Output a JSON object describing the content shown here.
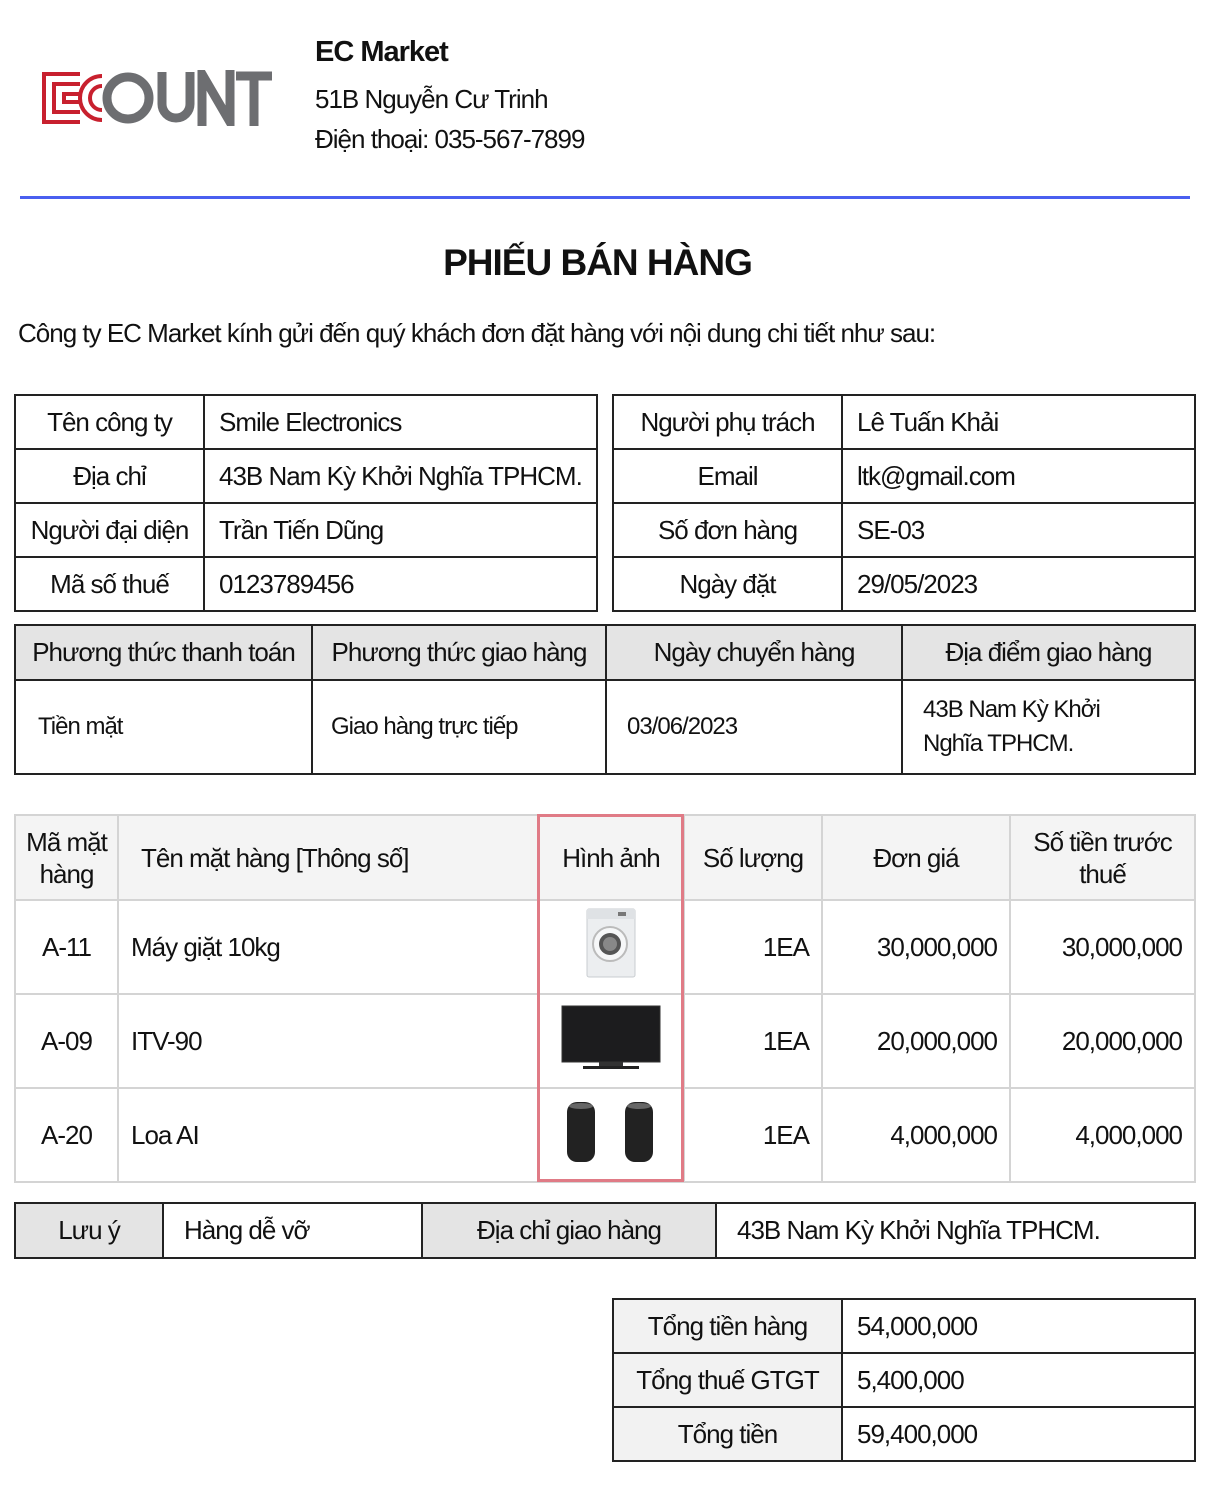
{
  "header": {
    "logo_text": "ECOUNT",
    "company": "EC Market",
    "address": "51B Nguyễn Cư Trinh",
    "phone": "Điện thoại: 035-567-7899",
    "accent": "#4a5ff0"
  },
  "title": "PHIẾU BÁN HÀNG",
  "intro": "Công ty EC Market kính gửi đến quý khách đơn đặt hàng với nội dung chi tiết như sau:",
  "customer": [
    [
      "Tên công ty",
      "Smile Electronics"
    ],
    [
      "Địa chỉ",
      "43B Nam Kỳ Khởi Nghĩa TPHCM."
    ],
    [
      "Người đại diện",
      "Trần Tiến Dũng"
    ],
    [
      "Mã số thuế",
      "0123789456"
    ]
  ],
  "order": [
    [
      "Người phụ trách",
      "Lê Tuấn Khải"
    ],
    [
      "Email",
      "ltk@gmail.com"
    ],
    [
      "Số đơn hàng",
      "SE-03"
    ],
    [
      "Ngày đặt",
      "29/05/2023"
    ]
  ],
  "delivery": {
    "headers": [
      "Phương thức thanh toán",
      "Phương thức giao hàng",
      "Ngày chuyển hàng",
      "Địa điểm giao hàng"
    ],
    "values": [
      "Tiền mặt",
      "Giao hàng trực tiếp",
      "03/06/2023",
      "43B Nam Kỳ Khởi Nghĩa TPHCM."
    ]
  },
  "items": {
    "headers": [
      "Mã mặt hàng",
      "Tên mặt hàng [Thông số]",
      "Hình ảnh",
      "Số lượng",
      "Đơn giá",
      "Số tiền trước thuế"
    ],
    "rows": [
      {
        "code": "A-11",
        "name": "Máy giặt 10kg",
        "image": "washing-machine",
        "qty": "1EA",
        "price": "30,000,000",
        "amount": "30,000,000"
      },
      {
        "code": "A-09",
        "name": "ITV-90",
        "image": "tv",
        "qty": "1EA",
        "price": "20,000,000",
        "amount": "20,000,000"
      },
      {
        "code": "A-20",
        "name": "Loa AI",
        "image": "speakers",
        "qty": "1EA",
        "price": "4,000,000",
        "amount": "4,000,000"
      }
    ]
  },
  "notes": {
    "note_label": "Lưu ý",
    "note": "Hàng dễ vỡ",
    "addr_label": "Địa chỉ giao hàng",
    "addr": "43B Nam Kỳ Khởi Nghĩa TPHCM."
  },
  "totals": [
    [
      "Tổng tiền hàng",
      "54,000,000"
    ],
    [
      "Tổng thuế GTGT",
      "5,400,000"
    ],
    [
      "Tổng tiền",
      "59,400,000"
    ]
  ]
}
